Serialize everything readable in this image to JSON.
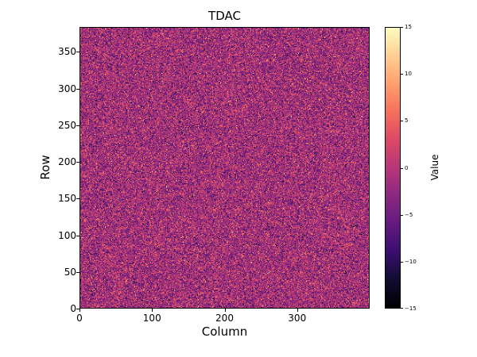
{
  "chart_data": {
    "type": "heatmap",
    "title": "TDAC",
    "xlabel": "Column",
    "ylabel": "Row",
    "x_range": [
      0,
      400
    ],
    "y_range": [
      0,
      384
    ],
    "x_ticks": [
      {
        "value": 0,
        "label": "0"
      },
      {
        "value": 100,
        "label": "100"
      },
      {
        "value": 200,
        "label": "200"
      },
      {
        "value": 300,
        "label": "300"
      }
    ],
    "y_ticks": [
      {
        "value": 0,
        "label": "0"
      },
      {
        "value": 50,
        "label": "50"
      },
      {
        "value": 100,
        "label": "100"
      },
      {
        "value": 150,
        "label": "150"
      },
      {
        "value": 200,
        "label": "200"
      },
      {
        "value": 250,
        "label": "250"
      },
      {
        "value": 300,
        "label": "300"
      },
      {
        "value": 350,
        "label": "350"
      }
    ],
    "colorbar": {
      "label": "Value",
      "min": -15,
      "max": 15,
      "ticks": [
        {
          "value": 15,
          "label": "15"
        },
        {
          "value": 10,
          "label": "10"
        },
        {
          "value": 5,
          "label": "5"
        },
        {
          "value": 0,
          "label": "0"
        },
        {
          "value": -5,
          "label": "−5"
        },
        {
          "value": -10,
          "label": "−10"
        },
        {
          "value": -15,
          "label": "−15"
        }
      ]
    },
    "colormap": {
      "name": "magma",
      "stops": [
        [
          0.0,
          "#000004"
        ],
        [
          0.1,
          "#120d32"
        ],
        [
          0.2,
          "#3b0f70"
        ],
        [
          0.3,
          "#641a80"
        ],
        [
          0.4,
          "#8c2981"
        ],
        [
          0.5,
          "#b73779"
        ],
        [
          0.6,
          "#de4968"
        ],
        [
          0.7,
          "#f7705c"
        ],
        [
          0.8,
          "#fe9f6d"
        ],
        [
          0.9,
          "#fecf92"
        ],
        [
          1.0,
          "#fcfdbf"
        ]
      ]
    },
    "noise": {
      "description": "per-pixel random integer TDAC values, unstructured noise over full map",
      "mean": -1.5,
      "std": 4.5,
      "seed": 7
    },
    "grid": false
  }
}
